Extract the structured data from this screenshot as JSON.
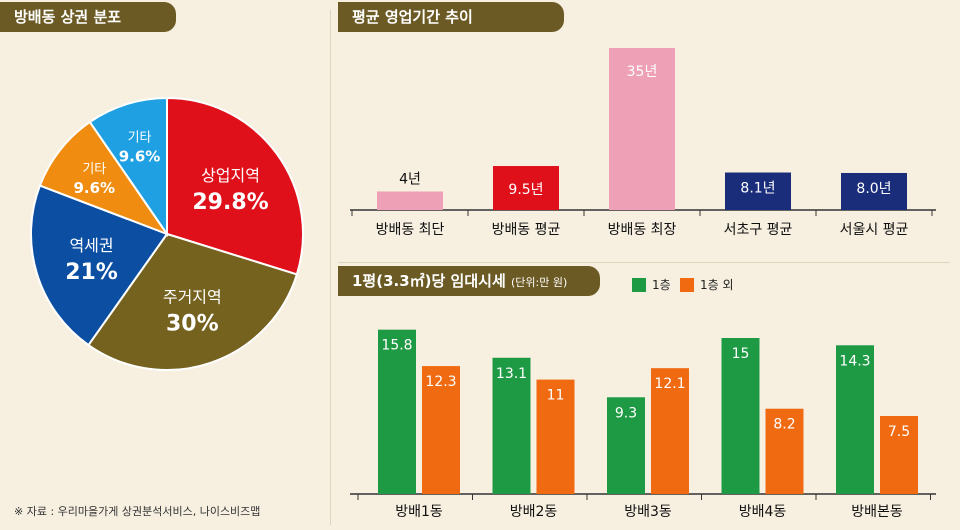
{
  "left_title": "방배동 상권 분포",
  "top_title": "평균 영업기간 추이",
  "bottom_title": "1평(3.3㎡)당 임대시세",
  "bottom_unit": "(단위:만 원)",
  "source": "※ 자료 : 우리마을가게 상권분석서비스, 나이스비즈맵",
  "colors": {
    "pie": [
      "#e0101b",
      "#75621f",
      "#0b4ea2",
      "#f08c0f",
      "#1fa0e2"
    ],
    "period": [
      "#eda0b6",
      "#e0101b",
      "#eda0b6",
      "#1a2d7a",
      "#1a2d7a"
    ],
    "floor1": "#1f9a44",
    "other": "#f06a12"
  },
  "chart_data": [
    {
      "type": "pie",
      "title": "방배동 상권 분포",
      "labels": [
        "상업지역",
        "주거지역",
        "역세권",
        "기타",
        "기타"
      ],
      "values": [
        29.8,
        30,
        21,
        9.6,
        9.6
      ],
      "display": [
        "29.8%",
        "30%",
        "21%",
        "9.6%",
        "9.6%"
      ]
    },
    {
      "type": "bar",
      "title": "평균 영업기간 추이",
      "categories": [
        "방배동 최단",
        "방배동 평균",
        "방배동 최장",
        "서초구 평균",
        "서울시 평균"
      ],
      "values": [
        4,
        9.5,
        35,
        8.1,
        8.0
      ],
      "value_labels": [
        "4년",
        "9.5년",
        "35년",
        "8.1년",
        "8.0년"
      ]
    },
    {
      "type": "bar",
      "title": "1평(3.3㎡)당 임대시세",
      "categories": [
        "방배1동",
        "방배2동",
        "방배3동",
        "방배4동",
        "방배본동"
      ],
      "series": [
        {
          "name": "1층",
          "values": [
            15.8,
            13.1,
            9.3,
            15,
            14.3
          ],
          "labels": [
            "15.8",
            "13.1",
            "9.3",
            "15",
            "14.3"
          ]
        },
        {
          "name": "1층 외",
          "values": [
            12.3,
            11,
            12.1,
            8.2,
            7.5
          ],
          "labels": [
            "12.3",
            "11",
            "12.1",
            "8.2",
            "7.5"
          ]
        }
      ],
      "ylim": [
        0,
        16
      ]
    }
  ]
}
